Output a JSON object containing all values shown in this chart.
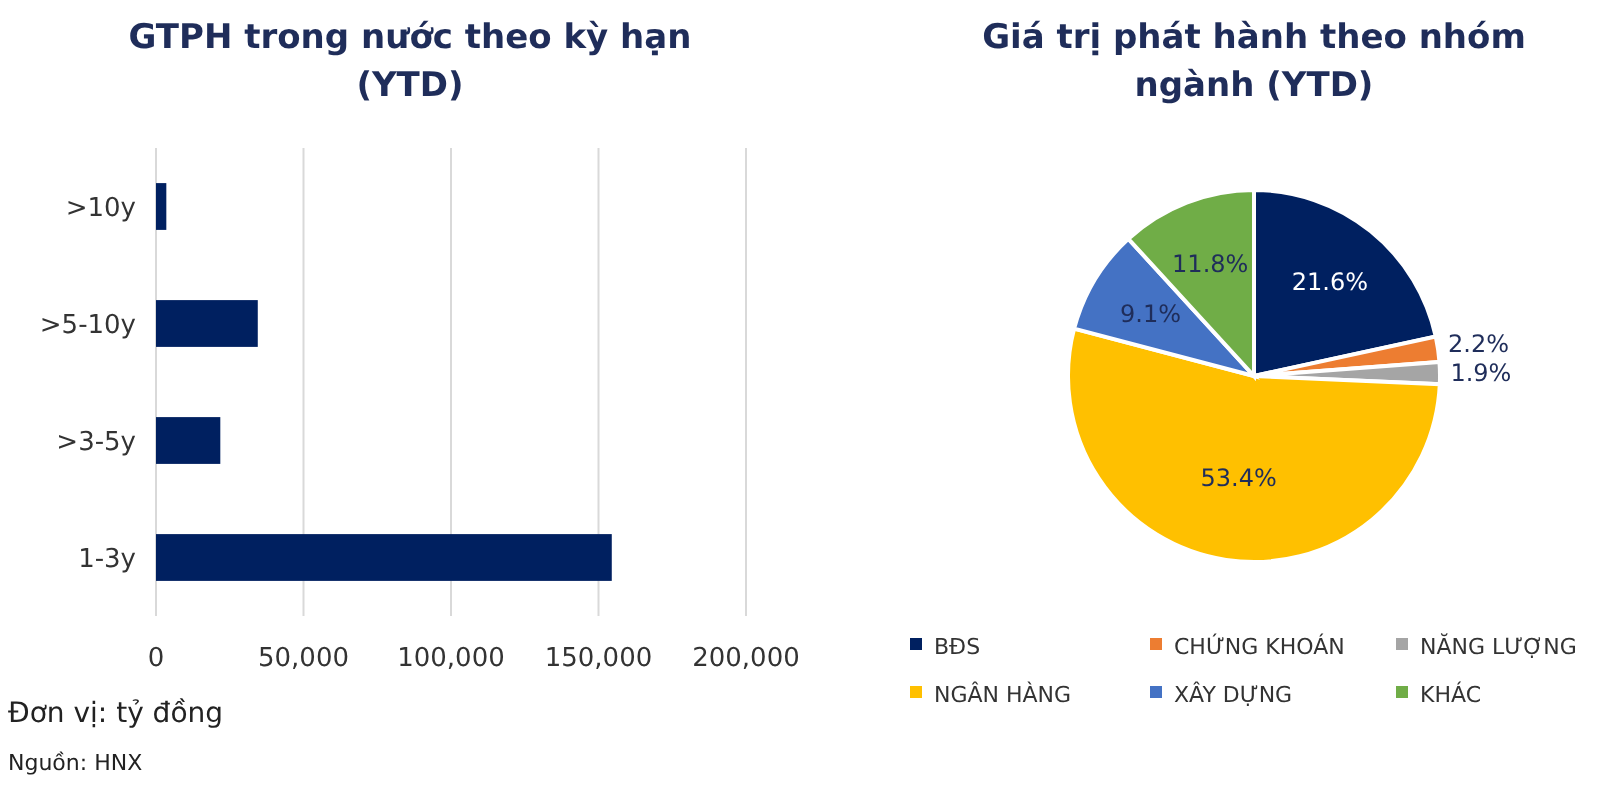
{
  "chart_data": [
    {
      "type": "bar",
      "orientation": "horizontal",
      "title": "GTPH trong nước theo kỳ hạn\n(YTD)",
      "categories": [
        ">10y",
        ">5-10y",
        ">3-5y",
        "1-3y"
      ],
      "values": [
        3500,
        34500,
        21800,
        154500
      ],
      "color": "#002060",
      "xlim": [
        0,
        200000
      ],
      "xticks": [
        {
          "value": 0,
          "label": "0"
        },
        {
          "value": 50000,
          "label": "50,000"
        },
        {
          "value": 100000,
          "label": "100,000"
        },
        {
          "value": 150000,
          "label": "150,000"
        },
        {
          "value": 200000,
          "label": "200,000"
        }
      ],
      "grid": "x",
      "annotations": [
        "Đơn vị: tỷ đồng",
        "Nguồn: HNX"
      ]
    },
    {
      "type": "pie",
      "title": "Giá trị phát hành theo nhóm\nngành (YTD)",
      "categories": [
        "BĐS",
        "CHỨNG KHOÁN",
        "NĂNG LƯỢNG",
        "NGÂN HÀNG",
        "XÂY DỰNG",
        "KHÁC"
      ],
      "values": [
        21.6,
        2.2,
        1.9,
        53.4,
        9.1,
        11.8
      ],
      "colors": [
        "#002060",
        "#ed7d31",
        "#a5a5a5",
        "#ffc000",
        "#4472c4",
        "#70ad47"
      ],
      "value_labels": [
        "21.6%",
        "2.2%",
        "1.9%",
        "53.4%",
        "9.1%",
        "11.8%"
      ],
      "legend": "bottom"
    }
  ]
}
